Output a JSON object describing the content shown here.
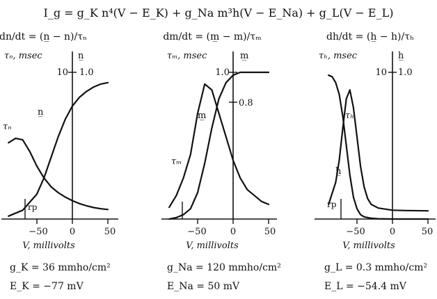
{
  "equation": "I_g = g_K n⁴(V − E_K) + g_Na m³h(V − E_Na) + g_L(V − E_L)",
  "chart_data": [
    {
      "type": "line",
      "id": "n",
      "rate_eq": "dn/dt = (n̲ − n)/τₙ",
      "left_axis_label": "τₙ, msec",
      "right_axis_label": "n̲",
      "left_tick_label": "10",
      "right_tick_labels": [
        "1.0"
      ],
      "xlabel": "V, millivolts",
      "xticks": [
        "−50",
        "0",
        "50"
      ],
      "rp_label": "rp",
      "xlim": [
        -90,
        55
      ],
      "series": [
        {
          "name": "n̲",
          "x": [
            -90,
            -70,
            -50,
            -40,
            -30,
            -20,
            -10,
            0,
            10,
            20,
            30,
            40,
            50
          ],
          "y": [
            0.02,
            0.06,
            0.17,
            0.28,
            0.42,
            0.56,
            0.68,
            0.77,
            0.83,
            0.87,
            0.9,
            0.92,
            0.93
          ]
        },
        {
          "name": "τₙ",
          "x": [
            -90,
            -80,
            -70,
            -60,
            -50,
            -40,
            -30,
            -20,
            -10,
            0,
            10,
            20,
            30,
            40,
            50
          ],
          "y": [
            5.2,
            5.5,
            5.4,
            4.6,
            3.6,
            2.8,
            2.2,
            1.8,
            1.5,
            1.25,
            1.05,
            0.9,
            0.78,
            0.7,
            0.65
          ]
        }
      ],
      "param1": "g_K = 36 mmho/cm²",
      "param2": "E_K = −77 mV"
    },
    {
      "type": "line",
      "id": "m",
      "rate_eq": "dm/dt = (m̲ − m)/τₘ",
      "left_axis_label": "τₘ, msec",
      "right_axis_label": "m̲",
      "left_tick_label": "",
      "right_tick_labels": [
        "1.0",
        "0.8"
      ],
      "xlabel": "V, millivolts",
      "xticks": [
        "−50",
        "0",
        "50"
      ],
      "rp_label": "",
      "xlim": [
        -90,
        55
      ],
      "series": [
        {
          "name": "m̲",
          "x": [
            -90,
            -80,
            -70,
            -60,
            -50,
            -40,
            -30,
            -20,
            -10,
            0,
            10,
            20,
            30,
            40,
            50
          ],
          "y": [
            0.0,
            0.01,
            0.03,
            0.07,
            0.18,
            0.38,
            0.62,
            0.82,
            0.93,
            0.98,
            1.0,
            1.0,
            1.0,
            1.0,
            1.0
          ]
        },
        {
          "name": "τₘ",
          "x": [
            -90,
            -80,
            -70,
            -60,
            -50,
            -40,
            -30,
            -20,
            -10,
            0,
            10,
            20,
            30,
            40,
            50
          ],
          "y": [
            0.04,
            0.08,
            0.14,
            0.22,
            0.36,
            0.46,
            0.44,
            0.36,
            0.28,
            0.2,
            0.14,
            0.1,
            0.08,
            0.06,
            0.05
          ]
        }
      ],
      "param1": "g_Na = 120 mmho/cm²",
      "param2": "E_Na = 50 mV"
    },
    {
      "type": "line",
      "id": "h",
      "rate_eq": "dh/dt = (h̲ − h)/τₕ",
      "left_axis_label": "τₕ, msec",
      "right_axis_label": "h̲",
      "left_tick_label": "10",
      "right_tick_labels": [
        "1.0"
      ],
      "xlabel": "V, millivolts",
      "xticks": [
        "−50",
        "0",
        "50"
      ],
      "rp_label": "rp",
      "xlim": [
        -90,
        55
      ],
      "series": [
        {
          "name": "h̲",
          "x": [
            -90,
            -85,
            -80,
            -75,
            -70,
            -65,
            -60,
            -55,
            -50,
            -45,
            -40,
            -30,
            -20,
            0,
            20,
            50
          ],
          "y": [
            0.98,
            0.97,
            0.93,
            0.85,
            0.7,
            0.5,
            0.3,
            0.15,
            0.07,
            0.03,
            0.015,
            0.005,
            0.002,
            0.0,
            0.0,
            0.0
          ]
        },
        {
          "name": "τₕ",
          "x": [
            -90,
            -80,
            -75,
            -70,
            -65,
            -60,
            -55,
            -50,
            -45,
            -40,
            -35,
            -30,
            -20,
            0,
            20,
            50
          ],
          "y": [
            1.0,
            2.5,
            4.0,
            6.2,
            8.2,
            8.8,
            7.6,
            5.6,
            3.6,
            2.2,
            1.4,
            1.0,
            0.75,
            0.6,
            0.58,
            0.56
          ]
        }
      ],
      "param1": "g_L = 0.3 mmho/cm²",
      "param2": "E_L = −54.4 mV"
    }
  ]
}
